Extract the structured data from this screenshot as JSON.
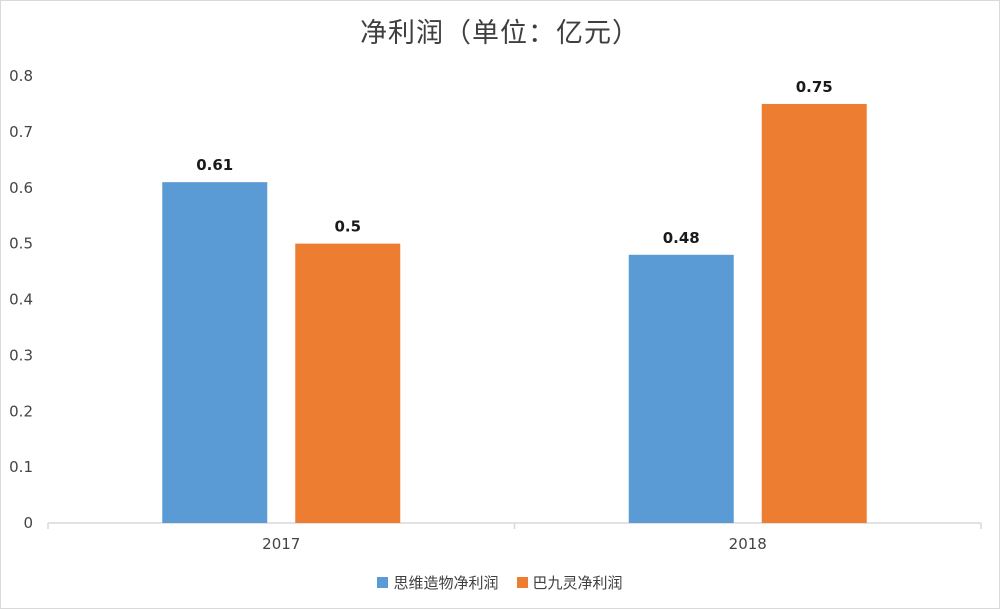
{
  "chart_data": {
    "type": "bar",
    "title": "净利润（单位：亿元）",
    "categories": [
      "2017",
      "2018"
    ],
    "series": [
      {
        "name": "思维造物净利润",
        "values": [
          0.61,
          0.48
        ],
        "color": "#5b9bd5"
      },
      {
        "name": "巴九灵净利润",
        "values": [
          0.5,
          0.75
        ],
        "color": "#ed7d31"
      }
    ],
    "data_labels": [
      [
        "0.61",
        "0.48"
      ],
      [
        "0.5",
        "0.75"
      ]
    ],
    "ylim": [
      0,
      0.8
    ],
    "yticks": [
      "0",
      "0.1",
      "0.2",
      "0.3",
      "0.4",
      "0.5",
      "0.6",
      "0.7",
      "0.8"
    ],
    "grid": false,
    "legend": "bottom",
    "axis_color": "#d9d9d9"
  }
}
